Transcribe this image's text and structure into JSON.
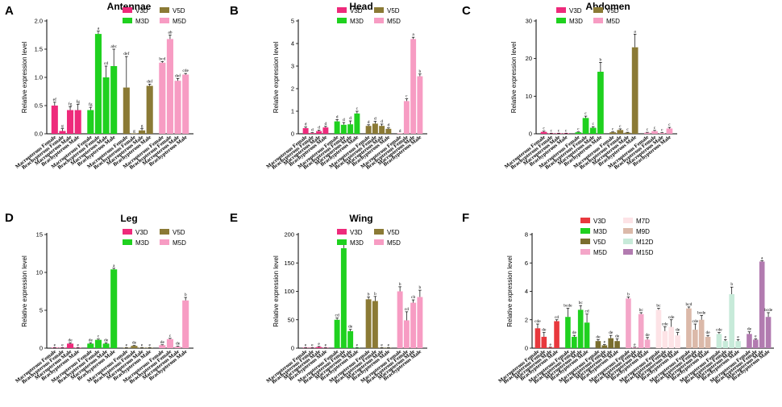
{
  "colors": {
    "V3D": "#ee2a7b",
    "M3D": "#1fd11f",
    "V5D": "#8b7a35",
    "M5D": "#f79cc3",
    "V3D_F": "#e8383d",
    "M3D_F": "#1fd11f",
    "V5D_F": "#7a6e2e",
    "M5D_F": "#f4a6c8",
    "M7D_F": "#fde3e6",
    "M9D_F": "#dbb9a9",
    "M12D_F": "#c7ead9",
    "M15D_F": "#b27bb0"
  },
  "categories": [
    "Macropterous Female",
    "Brachypterous Female",
    "Macropterous Male",
    "Brachypterous Male"
  ],
  "chart_data": [
    {
      "type": "bar",
      "letter": "A",
      "title": "Antennae",
      "ylabel": "Relative expression level",
      "ylim": [
        0,
        2.0
      ],
      "yticks": [
        0,
        0.5,
        1.0,
        1.5,
        2.0
      ],
      "ytick_labels": [
        "0.0",
        "0.5",
        "1.0",
        "1.5",
        "2.0"
      ],
      "legend": [
        {
          "name": "V3D",
          "color": "V3D"
        },
        {
          "name": "V5D",
          "color": "V5D"
        },
        {
          "name": "M3D",
          "color": "M3D"
        },
        {
          "name": "M5D",
          "color": "M5D"
        }
      ],
      "groups": [
        {
          "name": "V3D",
          "color": "V3D",
          "values": [
            0.5,
            0.05,
            0.42,
            0.42
          ],
          "errors": [
            0.06,
            0.04,
            0.06,
            0.1
          ],
          "labels": [
            "ef",
            "g",
            "fg",
            "fg"
          ]
        },
        {
          "name": "M3D",
          "color": "M3D",
          "values": [
            0.42,
            1.77,
            1.0,
            1.2
          ],
          "errors": [
            0.05,
            0.05,
            0.2,
            0.3
          ],
          "labels": [
            "fg",
            "a",
            "cd",
            "abc"
          ]
        },
        {
          "name": "V5D",
          "color": "V5D",
          "values": [
            0.82,
            0.0,
            0.06,
            0.85
          ],
          "errors": [
            0.55,
            0.0,
            0.03,
            0.03
          ],
          "labels": [
            "def",
            "g",
            "g",
            "def"
          ]
        },
        {
          "name": "M5D",
          "color": "M5D",
          "values": [
            1.26,
            1.68,
            0.94,
            1.05
          ],
          "errors": [
            0.02,
            0.07,
            0.04,
            0.02
          ],
          "labels": [
            "bcd",
            "ab",
            "def",
            "cde"
          ]
        }
      ]
    },
    {
      "type": "bar",
      "letter": "B",
      "title": "Head",
      "ylabel": "Relative expression level",
      "ylim": [
        0,
        5
      ],
      "yticks": [
        0,
        1,
        2,
        3,
        4,
        5
      ],
      "ytick_labels": [
        "0",
        "1",
        "2",
        "3",
        "4",
        "5"
      ],
      "legend": [
        {
          "name": "V3D",
          "color": "V3D"
        },
        {
          "name": "V5D",
          "color": "V5D"
        },
        {
          "name": "M3D",
          "color": "M3D"
        },
        {
          "name": "M5D",
          "color": "M5D"
        }
      ],
      "groups": [
        {
          "name": "V3D",
          "color": "V3D",
          "values": [
            0.25,
            0.03,
            0.12,
            0.28
          ],
          "errors": [
            0.05,
            0.02,
            0.04,
            0.05
          ],
          "labels": [
            "d",
            "d",
            "d",
            "d"
          ]
        },
        {
          "name": "M3D",
          "color": "M3D",
          "values": [
            0.55,
            0.4,
            0.42,
            0.9
          ],
          "errors": [
            0.08,
            0.1,
            0.15,
            0.1
          ],
          "labels": [
            "d",
            "d",
            "d",
            "c"
          ]
        },
        {
          "name": "V5D",
          "color": "V5D",
          "values": [
            0.35,
            0.45,
            0.35,
            0.22
          ],
          "errors": [
            0.05,
            0.1,
            0.08,
            0.04
          ],
          "labels": [
            "d",
            "d",
            "d",
            "d"
          ]
        },
        {
          "name": "M5D",
          "color": "M5D",
          "values": [
            0.0,
            1.45,
            4.2,
            2.55
          ],
          "errors": [
            0.0,
            0.1,
            0.08,
            0.1
          ],
          "labels": [
            "d",
            "c",
            "a",
            "b"
          ]
        }
      ]
    },
    {
      "type": "bar",
      "letter": "C",
      "title": "Abdomen",
      "ylabel": "Relative expression level",
      "ylim": [
        0,
        30
      ],
      "yticks": [
        0,
        10,
        20,
        30
      ],
      "ytick_labels": [
        "0",
        "10",
        "20",
        "30"
      ],
      "legend": [
        {
          "name": "V3D",
          "color": "V3D"
        },
        {
          "name": "V5D",
          "color": "V5D"
        },
        {
          "name": "M3D",
          "color": "M3D"
        },
        {
          "name": "M5D",
          "color": "M5D"
        }
      ],
      "groups": [
        {
          "name": "V3D",
          "color": "V3D",
          "values": [
            0.5,
            0.1,
            0.1,
            0.1
          ],
          "errors": [
            0.2,
            0.05,
            0.05,
            0.05
          ],
          "labels": [
            "c",
            "c",
            "c",
            "c"
          ]
        },
        {
          "name": "M3D",
          "color": "M3D",
          "values": [
            0.4,
            4.2,
            1.6,
            16.5
          ],
          "errors": [
            0.1,
            0.5,
            0.3,
            2.5
          ],
          "labels": [
            "c",
            "c",
            "c",
            "b"
          ]
        },
        {
          "name": "V5D",
          "color": "V5D",
          "values": [
            0.4,
            1.0,
            0.3,
            23.0
          ],
          "errors": [
            0.1,
            0.3,
            0.1,
            3.5
          ],
          "labels": [
            "c",
            "c",
            "c",
            "a"
          ]
        },
        {
          "name": "M5D",
          "color": "M5D",
          "values": [
            0.3,
            0.7,
            0.2,
            1.4
          ],
          "errors": [
            0.1,
            0.2,
            0.1,
            0.3
          ],
          "labels": [
            "c",
            "c",
            "c",
            "c"
          ]
        }
      ]
    },
    {
      "type": "bar",
      "letter": "D",
      "title": "Leg",
      "ylabel": "Relative expression level",
      "ylim": [
        0,
        15
      ],
      "yticks": [
        0,
        5,
        10,
        15
      ],
      "ytick_labels": [
        "0",
        "5",
        "10",
        "15"
      ],
      "legend": [
        {
          "name": "V3D",
          "color": "V3D"
        },
        {
          "name": "V5D",
          "color": "V5D"
        },
        {
          "name": "M3D",
          "color": "M3D"
        },
        {
          "name": "M5D",
          "color": "M5D"
        }
      ],
      "groups": [
        {
          "name": "V3D",
          "color": "V3D",
          "values": [
            0.05,
            0.05,
            0.6,
            0.05
          ],
          "errors": [
            0.02,
            0.02,
            0.1,
            0.02
          ],
          "labels": [
            "e",
            "e",
            "de",
            "e"
          ]
        },
        {
          "name": "M3D",
          "color": "M3D",
          "values": [
            0.6,
            1.1,
            0.6,
            10.4
          ],
          "errors": [
            0.1,
            0.1,
            0.1,
            0.15
          ],
          "labels": [
            "de",
            "c",
            "de",
            "a"
          ]
        },
        {
          "name": "V5D",
          "color": "V5D",
          "values": [
            0.05,
            0.3,
            0.05,
            0.05
          ],
          "errors": [
            0.02,
            0.05,
            0.02,
            0.02
          ],
          "labels": [
            "e",
            "de",
            "e",
            "e"
          ]
        },
        {
          "name": "M5D",
          "color": "M5D",
          "values": [
            0.4,
            1.2,
            0.2,
            6.3
          ],
          "errors": [
            0.05,
            0.1,
            0.05,
            0.4
          ],
          "labels": [
            "de",
            "c",
            "de",
            "b"
          ]
        }
      ]
    },
    {
      "type": "bar",
      "letter": "E",
      "title": "Wing",
      "ylabel": "Relative expression level",
      "ylim": [
        0,
        200
      ],
      "yticks": [
        0,
        50,
        100,
        150,
        200
      ],
      "ytick_labels": [
        "0",
        "50",
        "100",
        "150",
        "200"
      ],
      "legend": [
        {
          "name": "V3D",
          "color": "V3D"
        },
        {
          "name": "V5D",
          "color": "V5D"
        },
        {
          "name": "M3D",
          "color": "M3D"
        },
        {
          "name": "M5D",
          "color": "M5D"
        }
      ],
      "groups": [
        {
          "name": "V3D",
          "color": "V3D",
          "values": [
            0.5,
            0.5,
            2,
            0.5
          ],
          "errors": [
            0.3,
            0.3,
            1,
            0.3
          ],
          "labels": [
            "e",
            "e",
            "e",
            "e"
          ]
        },
        {
          "name": "M3D",
          "color": "M3D",
          "values": [
            50,
            176,
            30,
            0.5
          ],
          "errors": [
            3,
            8,
            3,
            0.3
          ],
          "labels": [
            "cd",
            "a",
            "de",
            "e"
          ]
        },
        {
          "name": "V5D",
          "color": "V5D",
          "values": [
            86,
            83,
            0.5,
            0.5
          ],
          "errors": [
            4,
            8,
            0.3,
            0.3
          ],
          "labels": [
            "b",
            "b",
            "e",
            "e"
          ]
        },
        {
          "name": "M5D",
          "color": "M5D",
          "values": [
            100,
            49,
            80,
            90
          ],
          "errors": [
            8,
            15,
            5,
            12
          ],
          "labels": [
            "b",
            "cd",
            "cb",
            "b"
          ]
        }
      ]
    },
    {
      "type": "bar",
      "letter": "F",
      "title": "",
      "ylabel": "Relative expression level",
      "ylim": [
        0,
        8
      ],
      "yticks": [
        0,
        2,
        4,
        6,
        8
      ],
      "ytick_labels": [
        "0",
        "2",
        "4",
        "6",
        "8"
      ],
      "legend": [
        {
          "name": "V3D",
          "color": "V3D_F"
        },
        {
          "name": "M7D",
          "color": "M7D_F"
        },
        {
          "name": "M3D",
          "color": "M3D_F"
        },
        {
          "name": "M9D",
          "color": "M9D_F"
        },
        {
          "name": "V5D",
          "color": "V5D_F"
        },
        {
          "name": "M12D",
          "color": "M12D_F"
        },
        {
          "name": "M5D",
          "color": "M5D_F"
        },
        {
          "name": "M15D",
          "color": "M15D_F"
        }
      ],
      "groups": [
        {
          "name": "V3D",
          "color": "V3D_F",
          "values": [
            1.4,
            0.8,
            0.05,
            1.9
          ],
          "errors": [
            0.3,
            0.3,
            0.02,
            0.1
          ],
          "labels": [
            "cde",
            "de",
            "e",
            "cd"
          ]
        },
        {
          "name": "M3D",
          "color": "M3D_F",
          "values": [
            2.2,
            0.8,
            2.7,
            1.8
          ],
          "errors": [
            0.6,
            0.1,
            0.3,
            0.6
          ],
          "labels": [
            "bcde",
            "de",
            "bc",
            "cd"
          ]
        },
        {
          "name": "V5D",
          "color": "V5D_F",
          "values": [
            0.5,
            0.2,
            0.7,
            0.5
          ],
          "errors": [
            0.1,
            0.05,
            0.2,
            0.15
          ],
          "labels": [
            "de",
            "e",
            "de",
            "de"
          ]
        },
        {
          "name": "M5D",
          "color": "M5D_F",
          "values": [
            3.5,
            0.05,
            2.4,
            0.6
          ],
          "errors": [
            0.1,
            0.02,
            0.1,
            0.15
          ],
          "labels": [
            "b",
            "e",
            "bc",
            "de"
          ]
        },
        {
          "name": "M7D",
          "color": "M7D_F",
          "values": [
            2.7,
            1.2,
            1.5,
            0.9
          ],
          "errors": [
            0.1,
            0.3,
            0.5,
            0.2
          ],
          "labels": [
            "bc",
            "cde",
            "cde",
            "de"
          ]
        },
        {
          "name": "M9D",
          "color": "M9D_F",
          "values": [
            2.8,
            1.3,
            2.0,
            0.8
          ],
          "errors": [
            0.1,
            0.4,
            0.3,
            0.1
          ],
          "labels": [
            "bcd",
            "cde",
            "bcde",
            "de"
          ]
        },
        {
          "name": "M12D",
          "color": "M12D_F",
          "values": [
            1.0,
            0.5,
            3.8,
            0.5
          ],
          "errors": [
            0.1,
            0.1,
            0.5,
            0.1
          ],
          "labels": [
            "cde",
            "e",
            "b",
            "e"
          ]
        },
        {
          "name": "M15D",
          "color": "M15D_F",
          "values": [
            1.0,
            0.6,
            6.1,
            2.2
          ],
          "errors": [
            0.15,
            0.05,
            0.05,
            0.3
          ],
          "labels": [
            "de",
            "e",
            "a",
            "bcde"
          ]
        }
      ]
    }
  ]
}
